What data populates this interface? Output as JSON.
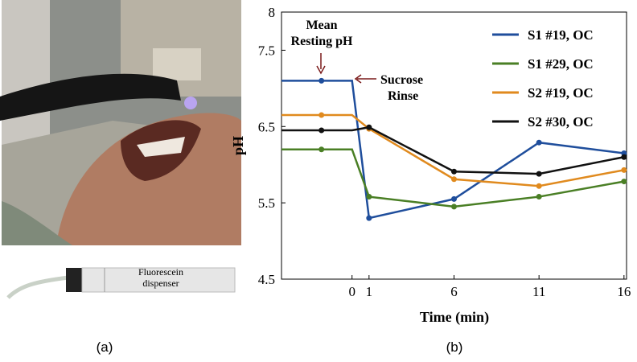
{
  "panel_a": {
    "dispenser_label": "Fluorescein dispenser",
    "caption": "(a)"
  },
  "panel_b_caption": "(b)",
  "chart_data": {
    "type": "line",
    "xlabel": "Time (min)",
    "ylabel": "pH",
    "x": [
      -4.15,
      -1.8,
      0,
      1,
      6,
      11,
      16
    ],
    "markers": [
      false,
      true,
      false,
      true,
      true,
      true,
      true
    ],
    "series": [
      {
        "name": "S1 #19, OC",
        "color": "#1f4e9c",
        "values": [
          7.1,
          7.1,
          7.1,
          5.3,
          5.55,
          6.29,
          6.15
        ]
      },
      {
        "name": "S1 #29, OC",
        "color": "#4a7f25",
        "values": [
          6.2,
          6.2,
          6.2,
          5.58,
          5.45,
          5.58,
          5.78
        ]
      },
      {
        "name": "S2 #19, OC",
        "color": "#e08a1e",
        "values": [
          6.65,
          6.65,
          6.65,
          6.47,
          5.81,
          5.72,
          5.93
        ]
      },
      {
        "name": "S2 #30, OC",
        "color": "#111111",
        "values": [
          6.45,
          6.45,
          6.45,
          6.49,
          5.91,
          5.88,
          6.1
        ]
      }
    ],
    "xlim": [
      -4.15,
      16.15
    ],
    "xticks": [
      0,
      1,
      6,
      11,
      16
    ],
    "ylim": [
      4.5,
      8
    ],
    "yticks": [
      4.5,
      5.5,
      6.5,
      7.5,
      8
    ],
    "annotations": [
      "Mean Resting pH",
      "Sucrose Rinse"
    ],
    "legend": "upper right"
  }
}
